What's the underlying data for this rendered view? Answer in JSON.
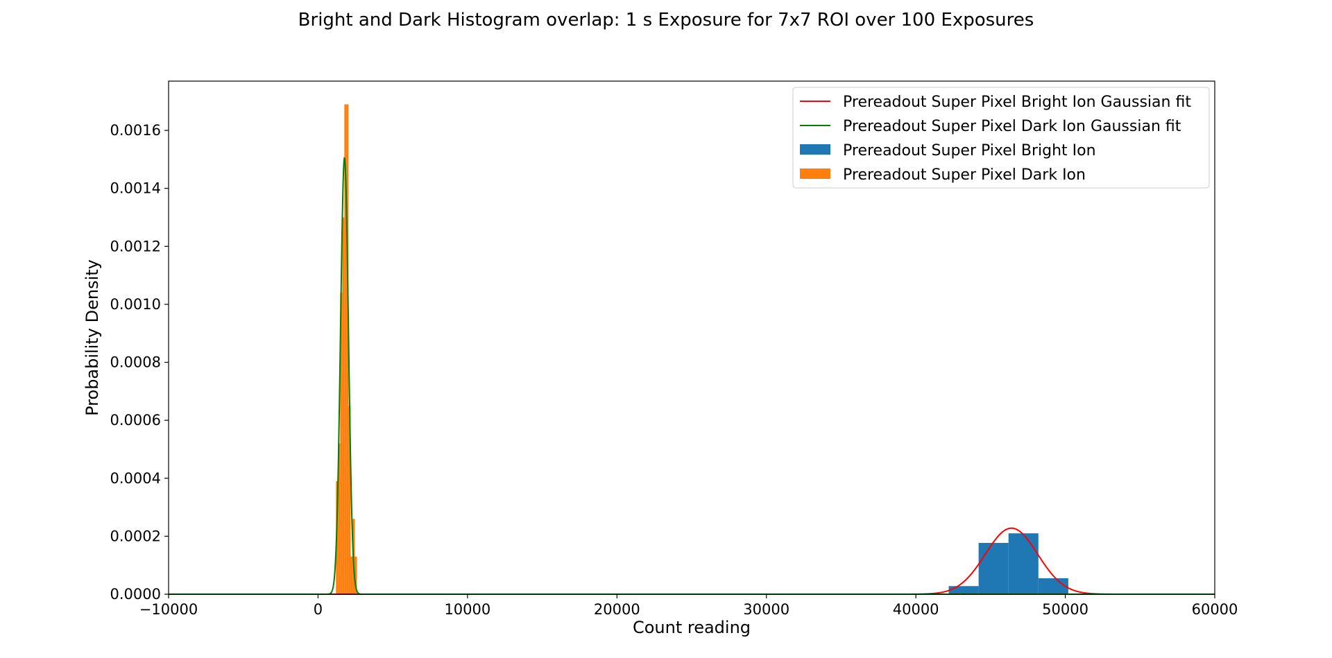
{
  "chart_data": {
    "type": "bar",
    "title": "Bright and Dark Histogram overlap: 1 s Exposure for 7x7 ROI over 100 Exposures",
    "xlabel": "Count reading",
    "ylabel": "Probability Density",
    "xlim": [
      -10000,
      60000
    ],
    "ylim": [
      0,
      0.00177
    ],
    "xticks": [
      -10000,
      0,
      10000,
      20000,
      30000,
      40000,
      50000,
      60000
    ],
    "xtick_labels": [
      "−10000",
      "0",
      "10000",
      "20000",
      "30000",
      "40000",
      "50000",
      "60000"
    ],
    "yticks": [
      0,
      0.0002,
      0.0004,
      0.0006,
      0.0008,
      0.001,
      0.0012,
      0.0014,
      0.0016
    ],
    "ytick_labels": [
      "0.0000",
      "0.0002",
      "0.0004",
      "0.0006",
      "0.0008",
      "0.0010",
      "0.0012",
      "0.0014",
      "0.0016"
    ],
    "grid": false,
    "legend_position": "top-right",
    "series": [
      {
        "name": "Prereadout Super Pixel Bright Ion Gaussian fit",
        "kind": "line",
        "color": "#ff0000",
        "mean": 46400,
        "std": 1750,
        "x_range": [
          -10000,
          60000
        ]
      },
      {
        "name": "Prereadout Super Pixel Dark Ion Gaussian fit",
        "kind": "line",
        "color": "#008000",
        "mean": 1770,
        "std": 265,
        "x_range": [
          -10000,
          60000
        ]
      },
      {
        "name": "Prereadout Super Pixel Bright Ion",
        "kind": "histogram",
        "color": "#1f77b4",
        "bins": [
          {
            "x0": 42200,
            "x1": 44200,
            "value": 2.8e-05
          },
          {
            "x0": 44200,
            "x1": 46200,
            "value": 0.000177
          },
          {
            "x0": 46200,
            "x1": 48200,
            "value": 0.00021
          },
          {
            "x0": 48200,
            "x1": 50200,
            "value": 5.5e-05
          }
        ]
      },
      {
        "name": "Prereadout Super Pixel Dark Ion",
        "kind": "histogram",
        "color": "#ff7f0e",
        "bins": [
          {
            "x0": 1200,
            "x1": 1340,
            "value": 0.00039
          },
          {
            "x0": 1340,
            "x1": 1480,
            "value": 0.00052
          },
          {
            "x0": 1480,
            "x1": 1620,
            "value": 0.00104
          },
          {
            "x0": 1620,
            "x1": 1760,
            "value": 0.0013
          },
          {
            "x0": 1760,
            "x1": 1900,
            "value": 0.00169
          },
          {
            "x0": 1900,
            "x1": 2040,
            "value": 0.00169
          },
          {
            "x0": 2040,
            "x1": 2180,
            "value": 0.00065
          },
          {
            "x0": 2180,
            "x1": 2320,
            "value": 0.00013
          },
          {
            "x0": 2320,
            "x1": 2460,
            "value": 0.00026
          },
          {
            "x0": 2460,
            "x1": 2600,
            "value": 0.00013
          }
        ]
      }
    ]
  }
}
